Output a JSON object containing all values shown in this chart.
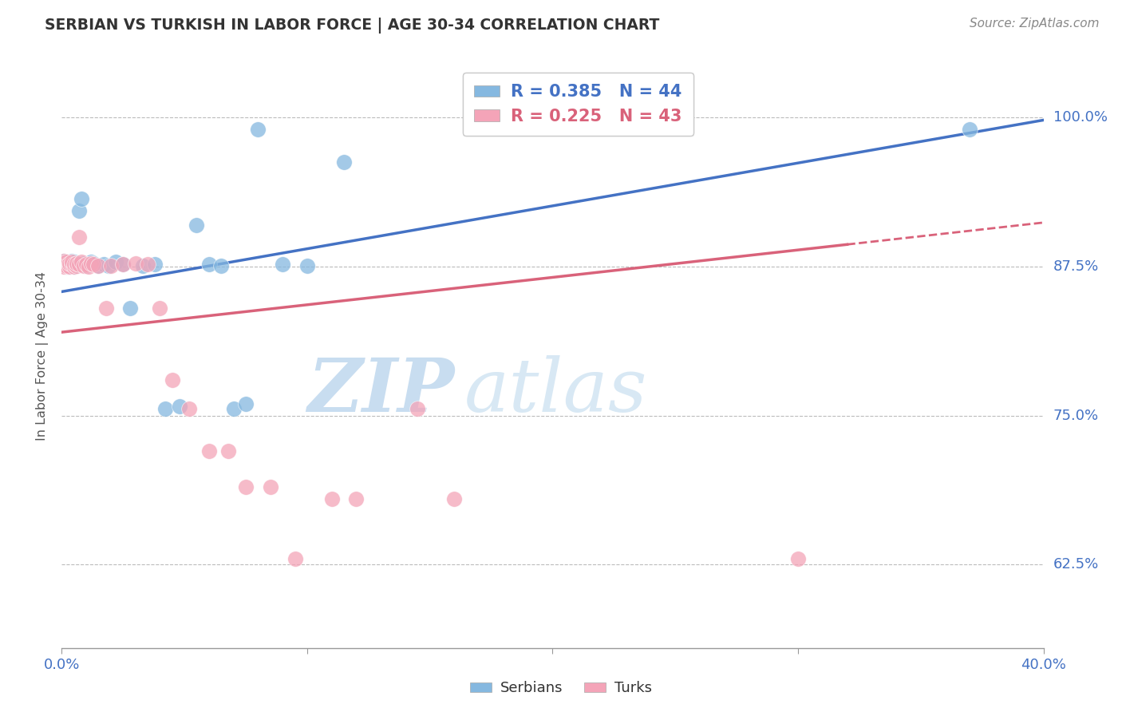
{
  "title": "SERBIAN VS TURKISH IN LABOR FORCE | AGE 30-34 CORRELATION CHART",
  "source": "Source: ZipAtlas.com",
  "ylabel": "In Labor Force | Age 30-34",
  "xlim": [
    0.0,
    0.4
  ],
  "ylim": [
    0.555,
    1.045
  ],
  "y_ticks": [
    0.625,
    0.75,
    0.875,
    1.0
  ],
  "y_tick_labels": [
    "62.5%",
    "75.0%",
    "87.5%",
    "100.0%"
  ],
  "x_ticks": [
    0.0,
    0.1,
    0.2,
    0.3,
    0.4
  ],
  "x_tick_labels": [
    "0.0%",
    "",
    "",
    "",
    "40.0%"
  ],
  "serbian_R": 0.385,
  "serbian_N": 44,
  "turkish_R": 0.225,
  "turkish_N": 43,
  "serbian_scatter_color": "#85b8e0",
  "turkish_scatter_color": "#f4a4b8",
  "serbian_line_color": "#4472C4",
  "turkish_line_color": "#d9627a",
  "legend_serbian": "Serbians",
  "legend_turkish": "Turks",
  "bg_color": "#ffffff",
  "grid_color": "#bbbbbb",
  "watermark": "ZIPatlas",
  "watermark_color": "#ddeef8",
  "serbian_x": [
    0.001,
    0.001,
    0.001,
    0.002,
    0.002,
    0.002,
    0.002,
    0.003,
    0.003,
    0.003,
    0.004,
    0.004,
    0.005,
    0.005,
    0.005,
    0.006,
    0.006,
    0.007,
    0.008,
    0.009,
    0.01,
    0.011,
    0.012,
    0.013,
    0.015,
    0.017,
    0.019,
    0.022,
    0.025,
    0.028,
    0.033,
    0.038,
    0.042,
    0.048,
    0.055,
    0.06,
    0.065,
    0.07,
    0.075,
    0.08,
    0.09,
    0.1,
    0.115,
    0.37
  ],
  "serbian_y": [
    0.876,
    0.878,
    0.88,
    0.875,
    0.877,
    0.879,
    0.876,
    0.876,
    0.875,
    0.878,
    0.877,
    0.88,
    0.875,
    0.877,
    0.879,
    0.876,
    0.878,
    0.922,
    0.932,
    0.878,
    0.876,
    0.877,
    0.879,
    0.878,
    0.876,
    0.877,
    0.876,
    0.879,
    0.877,
    0.84,
    0.876,
    0.877,
    0.756,
    0.758,
    0.91,
    0.877,
    0.876,
    0.756,
    0.76,
    0.99,
    0.877,
    0.876,
    0.963,
    0.99
  ],
  "turkish_x": [
    0.001,
    0.001,
    0.001,
    0.001,
    0.002,
    0.002,
    0.002,
    0.003,
    0.003,
    0.003,
    0.004,
    0.004,
    0.005,
    0.005,
    0.006,
    0.006,
    0.007,
    0.007,
    0.008,
    0.009,
    0.01,
    0.011,
    0.012,
    0.013,
    0.015,
    0.018,
    0.02,
    0.025,
    0.03,
    0.035,
    0.04,
    0.045,
    0.052,
    0.06,
    0.068,
    0.075,
    0.085,
    0.095,
    0.11,
    0.12,
    0.145,
    0.16,
    0.3
  ],
  "turkish_y": [
    0.876,
    0.878,
    0.88,
    0.875,
    0.877,
    0.879,
    0.876,
    0.876,
    0.875,
    0.878,
    0.877,
    0.879,
    0.875,
    0.877,
    0.876,
    0.878,
    0.877,
    0.9,
    0.879,
    0.876,
    0.877,
    0.875,
    0.878,
    0.877,
    0.876,
    0.84,
    0.876,
    0.877,
    0.878,
    0.877,
    0.84,
    0.78,
    0.756,
    0.72,
    0.72,
    0.69,
    0.69,
    0.63,
    0.68,
    0.68,
    0.756,
    0.68,
    0.63
  ]
}
